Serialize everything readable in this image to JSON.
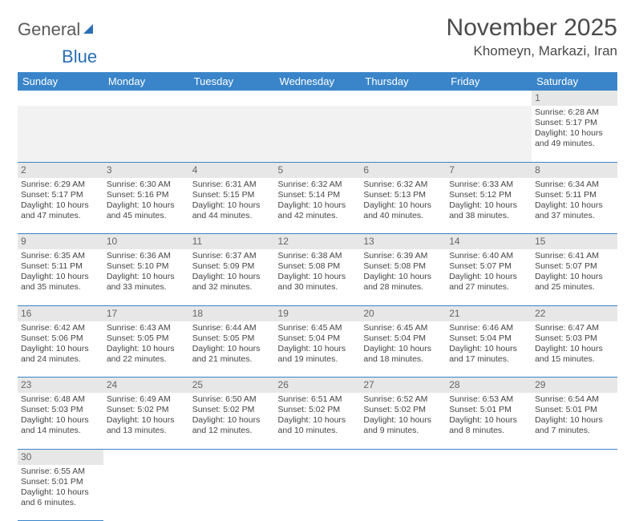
{
  "logo": {
    "text1": "General",
    "text2": "Blue"
  },
  "title": "November 2025",
  "location": "Khomeyn, Markazi, Iran",
  "weekdays": [
    "Sunday",
    "Monday",
    "Tuesday",
    "Wednesday",
    "Thursday",
    "Friday",
    "Saturday"
  ],
  "colors": {
    "header_bg": "#3a85c9",
    "header_text": "#ffffff",
    "daynum_bg": "#e7e7e7",
    "border": "#3a85c9",
    "title_color": "#4a4a4a",
    "logo_gray": "#5a5a5a",
    "logo_blue": "#2a6fb5"
  },
  "days": [
    {
      "n": "1",
      "sr": "Sunrise: 6:28 AM",
      "ss": "Sunset: 5:17 PM",
      "d1": "Daylight: 10 hours",
      "d2": "and 49 minutes."
    },
    {
      "n": "2",
      "sr": "Sunrise: 6:29 AM",
      "ss": "Sunset: 5:17 PM",
      "d1": "Daylight: 10 hours",
      "d2": "and 47 minutes."
    },
    {
      "n": "3",
      "sr": "Sunrise: 6:30 AM",
      "ss": "Sunset: 5:16 PM",
      "d1": "Daylight: 10 hours",
      "d2": "and 45 minutes."
    },
    {
      "n": "4",
      "sr": "Sunrise: 6:31 AM",
      "ss": "Sunset: 5:15 PM",
      "d1": "Daylight: 10 hours",
      "d2": "and 44 minutes."
    },
    {
      "n": "5",
      "sr": "Sunrise: 6:32 AM",
      "ss": "Sunset: 5:14 PM",
      "d1": "Daylight: 10 hours",
      "d2": "and 42 minutes."
    },
    {
      "n": "6",
      "sr": "Sunrise: 6:32 AM",
      "ss": "Sunset: 5:13 PM",
      "d1": "Daylight: 10 hours",
      "d2": "and 40 minutes."
    },
    {
      "n": "7",
      "sr": "Sunrise: 6:33 AM",
      "ss": "Sunset: 5:12 PM",
      "d1": "Daylight: 10 hours",
      "d2": "and 38 minutes."
    },
    {
      "n": "8",
      "sr": "Sunrise: 6:34 AM",
      "ss": "Sunset: 5:11 PM",
      "d1": "Daylight: 10 hours",
      "d2": "and 37 minutes."
    },
    {
      "n": "9",
      "sr": "Sunrise: 6:35 AM",
      "ss": "Sunset: 5:11 PM",
      "d1": "Daylight: 10 hours",
      "d2": "and 35 minutes."
    },
    {
      "n": "10",
      "sr": "Sunrise: 6:36 AM",
      "ss": "Sunset: 5:10 PM",
      "d1": "Daylight: 10 hours",
      "d2": "and 33 minutes."
    },
    {
      "n": "11",
      "sr": "Sunrise: 6:37 AM",
      "ss": "Sunset: 5:09 PM",
      "d1": "Daylight: 10 hours",
      "d2": "and 32 minutes."
    },
    {
      "n": "12",
      "sr": "Sunrise: 6:38 AM",
      "ss": "Sunset: 5:08 PM",
      "d1": "Daylight: 10 hours",
      "d2": "and 30 minutes."
    },
    {
      "n": "13",
      "sr": "Sunrise: 6:39 AM",
      "ss": "Sunset: 5:08 PM",
      "d1": "Daylight: 10 hours",
      "d2": "and 28 minutes."
    },
    {
      "n": "14",
      "sr": "Sunrise: 6:40 AM",
      "ss": "Sunset: 5:07 PM",
      "d1": "Daylight: 10 hours",
      "d2": "and 27 minutes."
    },
    {
      "n": "15",
      "sr": "Sunrise: 6:41 AM",
      "ss": "Sunset: 5:07 PM",
      "d1": "Daylight: 10 hours",
      "d2": "and 25 minutes."
    },
    {
      "n": "16",
      "sr": "Sunrise: 6:42 AM",
      "ss": "Sunset: 5:06 PM",
      "d1": "Daylight: 10 hours",
      "d2": "and 24 minutes."
    },
    {
      "n": "17",
      "sr": "Sunrise: 6:43 AM",
      "ss": "Sunset: 5:05 PM",
      "d1": "Daylight: 10 hours",
      "d2": "and 22 minutes."
    },
    {
      "n": "18",
      "sr": "Sunrise: 6:44 AM",
      "ss": "Sunset: 5:05 PM",
      "d1": "Daylight: 10 hours",
      "d2": "and 21 minutes."
    },
    {
      "n": "19",
      "sr": "Sunrise: 6:45 AM",
      "ss": "Sunset: 5:04 PM",
      "d1": "Daylight: 10 hours",
      "d2": "and 19 minutes."
    },
    {
      "n": "20",
      "sr": "Sunrise: 6:45 AM",
      "ss": "Sunset: 5:04 PM",
      "d1": "Daylight: 10 hours",
      "d2": "and 18 minutes."
    },
    {
      "n": "21",
      "sr": "Sunrise: 6:46 AM",
      "ss": "Sunset: 5:04 PM",
      "d1": "Daylight: 10 hours",
      "d2": "and 17 minutes."
    },
    {
      "n": "22",
      "sr": "Sunrise: 6:47 AM",
      "ss": "Sunset: 5:03 PM",
      "d1": "Daylight: 10 hours",
      "d2": "and 15 minutes."
    },
    {
      "n": "23",
      "sr": "Sunrise: 6:48 AM",
      "ss": "Sunset: 5:03 PM",
      "d1": "Daylight: 10 hours",
      "d2": "and 14 minutes."
    },
    {
      "n": "24",
      "sr": "Sunrise: 6:49 AM",
      "ss": "Sunset: 5:02 PM",
      "d1": "Daylight: 10 hours",
      "d2": "and 13 minutes."
    },
    {
      "n": "25",
      "sr": "Sunrise: 6:50 AM",
      "ss": "Sunset: 5:02 PM",
      "d1": "Daylight: 10 hours",
      "d2": "and 12 minutes."
    },
    {
      "n": "26",
      "sr": "Sunrise: 6:51 AM",
      "ss": "Sunset: 5:02 PM",
      "d1": "Daylight: 10 hours",
      "d2": "and 10 minutes."
    },
    {
      "n": "27",
      "sr": "Sunrise: 6:52 AM",
      "ss": "Sunset: 5:02 PM",
      "d1": "Daylight: 10 hours",
      "d2": "and 9 minutes."
    },
    {
      "n": "28",
      "sr": "Sunrise: 6:53 AM",
      "ss": "Sunset: 5:01 PM",
      "d1": "Daylight: 10 hours",
      "d2": "and 8 minutes."
    },
    {
      "n": "29",
      "sr": "Sunrise: 6:54 AM",
      "ss": "Sunset: 5:01 PM",
      "d1": "Daylight: 10 hours",
      "d2": "and 7 minutes."
    },
    {
      "n": "30",
      "sr": "Sunrise: 6:55 AM",
      "ss": "Sunset: 5:01 PM",
      "d1": "Daylight: 10 hours",
      "d2": "and 6 minutes."
    }
  ]
}
